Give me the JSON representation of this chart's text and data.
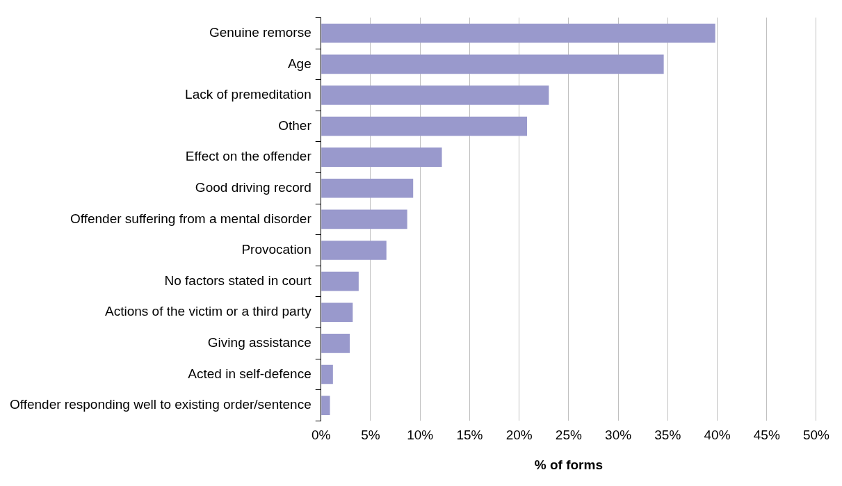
{
  "chart_data": {
    "type": "bar",
    "orientation": "horizontal",
    "xlabel": "% of forms",
    "categories": [
      "Genuine remorse",
      "Age",
      "Lack of premeditation",
      "Other",
      "Effect on the offender",
      "Good driving record",
      "Offender suffering from a mental disorder",
      "Provocation",
      "No factors stated in court",
      "Actions of the victim or a third party",
      "Giving assistance",
      "Acted in self-defence",
      "Offender responding well to existing order/sentence"
    ],
    "values": [
      39.8,
      34.6,
      23.0,
      20.8,
      12.2,
      9.3,
      8.7,
      6.6,
      3.8,
      3.2,
      2.9,
      1.2,
      0.9
    ],
    "color": "#9999cc",
    "xlim": [
      0,
      50
    ],
    "xticks": [
      {
        "value": 0,
        "label": "0%"
      },
      {
        "value": 5,
        "label": "5%"
      },
      {
        "value": 10,
        "label": "10%"
      },
      {
        "value": 15,
        "label": "15%"
      },
      {
        "value": 20,
        "label": "20%"
      },
      {
        "value": 25,
        "label": "25%"
      },
      {
        "value": 30,
        "label": "30%"
      },
      {
        "value": 35,
        "label": "35%"
      },
      {
        "value": 40,
        "label": "40%"
      },
      {
        "value": 45,
        "label": "45%"
      },
      {
        "value": 50,
        "label": "50%"
      }
    ],
    "grid": "x",
    "legend": false
  }
}
